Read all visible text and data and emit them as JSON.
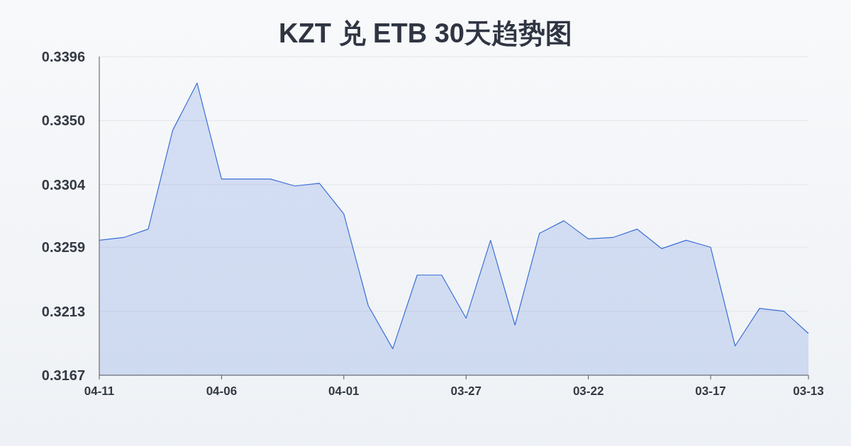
{
  "chart_data": {
    "type": "area",
    "title": "KZT 兑 ETB 30天趋势图",
    "categories": [
      "04-11",
      null,
      null,
      null,
      null,
      "04-06",
      null,
      null,
      null,
      null,
      "04-01",
      null,
      null,
      null,
      null,
      "03-27",
      null,
      null,
      null,
      null,
      "03-22",
      null,
      null,
      null,
      null,
      "03-17",
      null,
      null,
      null,
      "03-13"
    ],
    "series": [
      {
        "color": "#3b6fd6",
        "values": [
          0.3264,
          0.3266,
          0.3272,
          0.3343,
          0.3377,
          0.3308,
          0.3308,
          0.3308,
          0.3303,
          0.3305,
          0.3283,
          0.3217,
          0.3186,
          0.3239,
          0.3239,
          0.3208,
          0.3264,
          0.3203,
          0.3269,
          0.3278,
          0.3265,
          0.3266,
          0.3272,
          0.3258,
          0.3264,
          0.3259,
          0.3188,
          0.3215,
          0.3213,
          0.3197
        ]
      }
    ],
    "ylim": [
      0.3167,
      0.3396
    ],
    "yticks": [
      0.3167,
      0.3213,
      0.3259,
      0.3304,
      {
        "value": 0.335,
        "label": "0.3350"
      },
      0.3396
    ],
    "grid": "y"
  }
}
